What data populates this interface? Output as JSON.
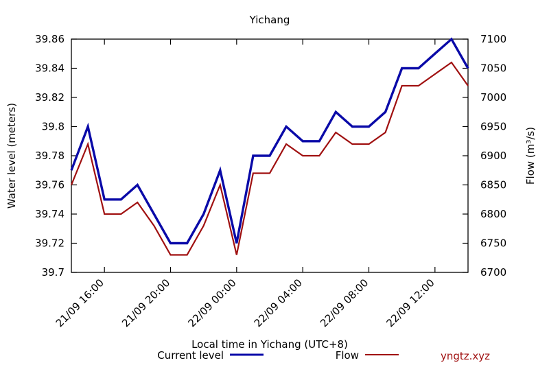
{
  "chart_data": {
    "type": "line",
    "title": "Yichang",
    "xlabel": "Local time in Yichang (UTC+8)",
    "ylabel": "Water level (meters)",
    "y2label": "Flow (m³/s)",
    "x": [
      "21/09 14:00",
      "21/09 15:00",
      "21/09 16:00",
      "21/09 17:00",
      "21/09 18:00",
      "21/09 19:00",
      "21/09 20:00",
      "21/09 21:00",
      "21/09 22:00",
      "21/09 23:00",
      "22/09 00:00",
      "22/09 01:00",
      "22/09 02:00",
      "22/09 03:00",
      "22/09 04:00",
      "22/09 05:00",
      "22/09 06:00",
      "22/09 07:00",
      "22/09 08:00",
      "22/09 09:00",
      "22/09 10:00",
      "22/09 11:00",
      "22/09 12:00",
      "22/09 13:00",
      "22/09 14:00"
    ],
    "xticks": [
      "21/09 16:00",
      "21/09 20:00",
      "22/09 00:00",
      "22/09 04:00",
      "22/09 08:00",
      "22/09 12:00"
    ],
    "ylim": [
      39.7,
      39.86
    ],
    "yticks": [
      "39.7",
      "39.72",
      "39.74",
      "39.76",
      "39.78",
      "39.8",
      "39.82",
      "39.84",
      "39.86"
    ],
    "y2lim": [
      6700,
      7100
    ],
    "y2ticks": [
      "6700",
      "6750",
      "6800",
      "6850",
      "6900",
      "6950",
      "7000",
      "7050",
      "7100"
    ],
    "legend_position": "bottom",
    "series": [
      {
        "name": "Current level",
        "axis": "left",
        "color": "#0a0aa8",
        "values": [
          39.77,
          39.8,
          39.75,
          39.75,
          39.76,
          39.74,
          39.72,
          39.72,
          39.74,
          39.77,
          39.72,
          39.78,
          39.78,
          39.8,
          39.79,
          39.79,
          39.81,
          39.8,
          39.8,
          39.81,
          39.84,
          39.84,
          39.85,
          39.86,
          39.84
        ]
      },
      {
        "name": "Flow",
        "axis": "right",
        "color": "#a01010",
        "values": [
          6850,
          6920,
          6800,
          6800,
          6820,
          6780,
          6730,
          6730,
          6780,
          6850,
          6730,
          6870,
          6870,
          6920,
          6900,
          6900,
          6940,
          6920,
          6920,
          6940,
          7020,
          7020,
          7040,
          7060,
          7020
        ]
      }
    ]
  },
  "watermark": "yngtz.xyz"
}
